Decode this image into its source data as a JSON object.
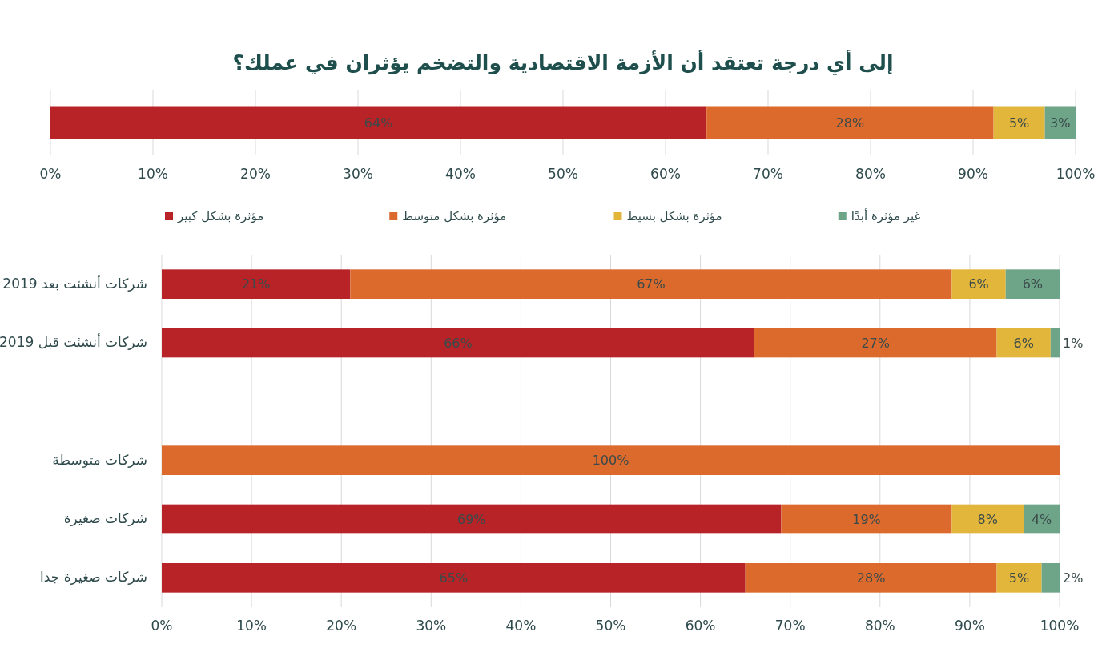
{
  "chart_data": [
    {
      "type": "bar",
      "orientation": "horizontal",
      "stacked": true,
      "title": "إلى أي درجة تعتقد أن الأزمة الاقتصادية والتضخم يؤثران في عملك؟",
      "categories": [
        null
      ],
      "series": [
        {
          "color": "#b82327",
          "values": [
            64
          ],
          "value_labels": [
            "64%"
          ]
        },
        {
          "color": "#dc6a2c",
          "values": [
            28
          ],
          "value_labels": [
            "28%"
          ]
        },
        {
          "color": "#e2b53b",
          "values": [
            5
          ],
          "value_labels": [
            "5%"
          ]
        },
        {
          "color": "#6ea589",
          "values": [
            3
          ],
          "value_labels": [
            "3%"
          ]
        }
      ],
      "xlim": [
        0,
        100
      ],
      "xticks": [
        {
          "value": 0,
          "label": "0%"
        },
        {
          "value": 10,
          "label": "10%"
        },
        {
          "value": 20,
          "label": "20%"
        },
        {
          "value": 30,
          "label": "30%"
        },
        {
          "value": 40,
          "label": "40%"
        },
        {
          "value": 50,
          "label": "50%"
        },
        {
          "value": 60,
          "label": "60%"
        },
        {
          "value": 70,
          "label": "70%"
        },
        {
          "value": 80,
          "label": "80%"
        },
        {
          "value": 90,
          "label": "90%"
        },
        {
          "value": 100,
          "label": "100%"
        }
      ],
      "grid": "x"
    },
    {
      "type": "bar",
      "orientation": "horizontal",
      "stacked": true,
      "categories": [
        "شركات أنشئت بعد 2019",
        "شركات أنشئت قبل 2019",
        null,
        "شركات متوسطة",
        "شركات صغيرة",
        "شركات صغيرة جدا"
      ],
      "series": [
        {
          "name": "مؤثرة بشكل كبير",
          "color": "#b82327",
          "values": [
            21,
            66,
            null,
            null,
            69,
            65
          ],
          "value_labels": [
            "21%",
            "66%",
            null,
            null,
            "69%",
            "65%"
          ]
        },
        {
          "name": "مؤثرة بشكل متوسط",
          "color": "#dc6a2c",
          "values": [
            67,
            27,
            null,
            100,
            19,
            28
          ],
          "value_labels": [
            "67%",
            "27%",
            null,
            "100%",
            "19%",
            "28%"
          ]
        },
        {
          "name": "مؤثرة بشكل بسيط",
          "color": "#e2b53b",
          "values": [
            6,
            6,
            null,
            null,
            8,
            5
          ],
          "value_labels": [
            "6%",
            "6%",
            null,
            null,
            "8%",
            "5%"
          ]
        },
        {
          "name": "غير مؤثرة أبدًا",
          "color": "#6ea589",
          "values": [
            6,
            1,
            null,
            null,
            4,
            2
          ],
          "value_labels": [
            "6%",
            "1%",
            null,
            null,
            "4%",
            "2%"
          ]
        }
      ],
      "xlim": [
        0,
        100
      ],
      "xticks": [
        {
          "value": 0,
          "label": "0%"
        },
        {
          "value": 10,
          "label": "10%"
        },
        {
          "value": 20,
          "label": "20%"
        },
        {
          "value": 30,
          "label": "30%"
        },
        {
          "value": 40,
          "label": "40%"
        },
        {
          "value": 50,
          "label": "50%"
        },
        {
          "value": 60,
          "label": "60%"
        },
        {
          "value": 70,
          "label": "70%"
        },
        {
          "value": 80,
          "label": "80%"
        },
        {
          "value": 90,
          "label": "90%"
        },
        {
          "value": 100,
          "label": "100%"
        }
      ],
      "grid": "x",
      "legend": "top"
    }
  ]
}
